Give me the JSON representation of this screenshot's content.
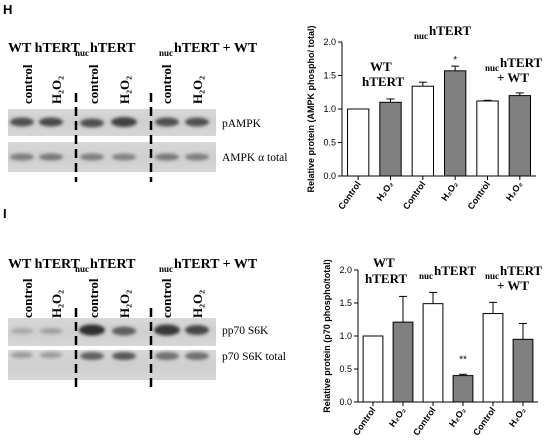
{
  "figure": {
    "panels": [
      {
        "letter": "H",
        "blot": {
          "headers": {
            "wt": "WT hTERT",
            "nuc_sub": "nuc",
            "nuc": "hTERT",
            "mix_sub": "nuc",
            "mix": "hTERT + WT"
          },
          "lanes": [
            "control",
            "H₂O₂",
            "control",
            "H₂O₂",
            "control",
            "H₂O₂"
          ],
          "bands": [
            "pAMPK",
            "AMPK α total"
          ]
        },
        "chart_groups": [
          {
            "line1": "WT",
            "line2": "hTERT"
          },
          {
            "sub": "nuc",
            "line1": "hTERT"
          },
          {
            "sub": "nuc",
            "line1": "hTERT",
            "line2": "+ WT"
          }
        ],
        "significance": "*"
      },
      {
        "letter": "I",
        "blot": {
          "headers": {
            "wt": "WT hTERT",
            "nuc_sub": "nuc",
            "nuc": "hTERT",
            "mix_sub": "nuc",
            "mix": "hTERT + WT"
          },
          "lanes": [
            "control",
            "H₂O₂",
            "control",
            "H₂O₂",
            "control",
            "H₂O₂"
          ],
          "bands": [
            "pp70 S6K",
            "p70 S6K total"
          ]
        },
        "chart_groups": [
          {
            "line1": "WT",
            "line2": "hTERT"
          },
          {
            "sub": "nuc",
            "line1": "hTERT"
          },
          {
            "sub": "nuc",
            "line1": "hTERT",
            "line2": "+ WT"
          }
        ],
        "significance": "**"
      }
    ]
  },
  "chart_data": [
    {
      "type": "bar",
      "categories": [
        "Control",
        "H₂O₂",
        "Control",
        "H₂O₂",
        "Control",
        "H₂O₂"
      ],
      "values": [
        1.0,
        1.1,
        1.34,
        1.57,
        1.12,
        1.2
      ],
      "errors": [
        0.0,
        0.05,
        0.06,
        0.07,
        0.01,
        0.04
      ],
      "bar_colors": [
        "#ffffff",
        "#808080",
        "#ffffff",
        "#808080",
        "#ffffff",
        "#808080"
      ],
      "ylabel": "Relative protein (AMPK phospho/ total)",
      "ylim": [
        0,
        2.0
      ],
      "yticks": [
        "0.0",
        "0.5",
        "1.0",
        "1.5",
        "2.0"
      ],
      "grid": false
    },
    {
      "type": "bar",
      "categories": [
        "Control",
        "H₂O₂",
        "Control",
        "H₂O₂",
        "Control",
        "H₂O₂"
      ],
      "values": [
        1.0,
        1.21,
        1.49,
        0.4,
        1.34,
        0.95
      ],
      "errors": [
        0.0,
        0.39,
        0.17,
        0.02,
        0.17,
        0.24
      ],
      "bar_colors": [
        "#ffffff",
        "#808080",
        "#ffffff",
        "#808080",
        "#ffffff",
        "#808080"
      ],
      "ylabel": "Relative protein (p70 phospho/total)",
      "ylim": [
        0,
        2.0
      ],
      "yticks": [
        "0.0",
        "0.5",
        "1.0",
        "1.5",
        "2.0"
      ],
      "grid": false
    }
  ]
}
